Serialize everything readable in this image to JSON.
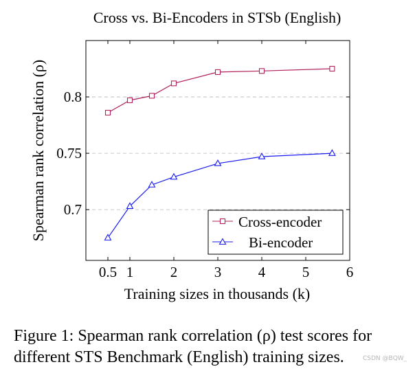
{
  "chart_data": {
    "type": "line",
    "title": "Cross vs. Bi-Encoders in STSb (English)",
    "xlabel": "Training sizes in thousands (k)",
    "ylabel": "Spearman rank correlation (ρ)",
    "xlim": [
      0,
      6
    ],
    "ylim": [
      0.655,
      0.85
    ],
    "xticks": [
      0.5,
      1,
      2,
      3,
      4,
      5,
      6
    ],
    "xtick_labels": [
      "0.5",
      "1",
      "2",
      "3",
      "4",
      "5",
      "6"
    ],
    "yticks": [
      0.7,
      0.75,
      0.8
    ],
    "ytick_labels": [
      "0.7",
      "0.75",
      "0.8"
    ],
    "grid": "horizontal dashed",
    "legend_position": "bottom-right",
    "series": [
      {
        "name": "Cross-encoder",
        "color": "#b0205a",
        "marker": "square",
        "x": [
          0.5,
          1,
          1.5,
          2,
          3,
          4,
          5.6
        ],
        "y": [
          0.786,
          0.797,
          0.801,
          0.812,
          0.822,
          0.823,
          0.825
        ]
      },
      {
        "name": "Bi-encoder",
        "color": "#1a1aee",
        "marker": "triangle",
        "x": [
          0.5,
          1,
          1.5,
          2,
          3,
          4,
          5.6
        ],
        "y": [
          0.675,
          0.703,
          0.722,
          0.729,
          0.741,
          0.747,
          0.75
        ]
      }
    ]
  },
  "caption": "Figure 1: Spearman rank correlation (ρ) test scores for different STS Benchmark (English) training sizes.",
  "watermark": "CSDN @BQW_"
}
